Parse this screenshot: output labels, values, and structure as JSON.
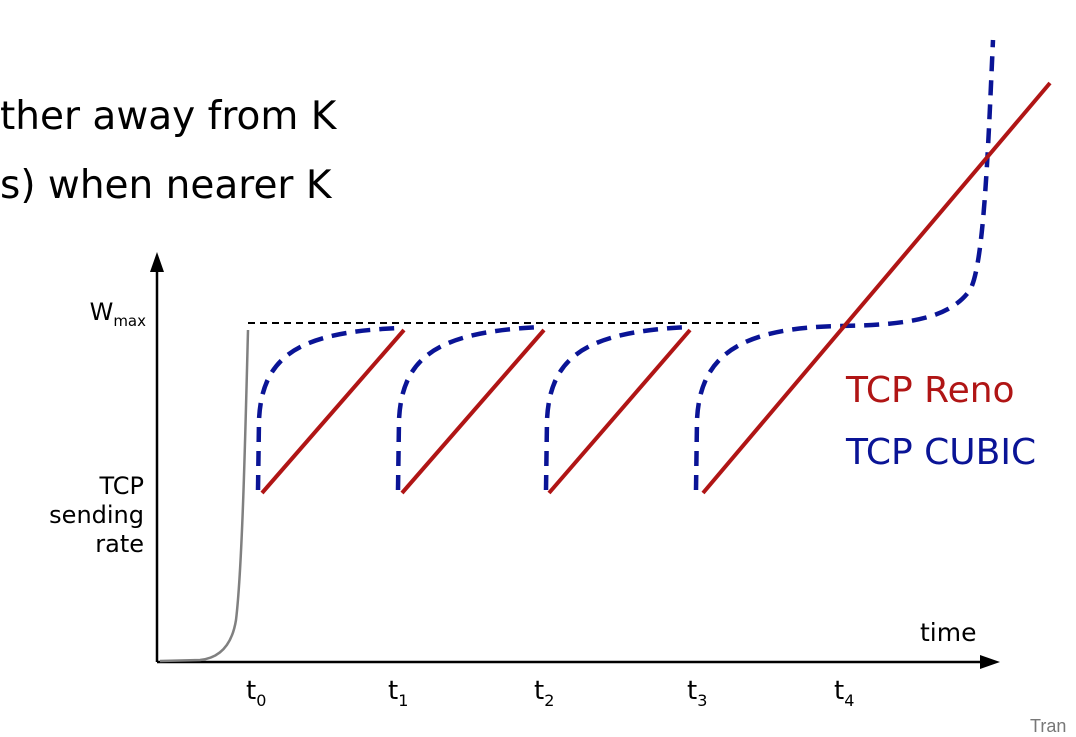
{
  "slide": {
    "bullets": [
      "ther away from K",
      "s) when nearer K"
    ],
    "footer": "Tran"
  },
  "diagram": {
    "y_axis_label_lines": [
      "TCP",
      "sending",
      "rate"
    ],
    "wmax_label": "W",
    "wmax_sub": "max",
    "x_axis_label": "time",
    "ticks": [
      {
        "base": "t",
        "sub": "0"
      },
      {
        "base": "t",
        "sub": "1"
      },
      {
        "base": "t",
        "sub": "2"
      },
      {
        "base": "t",
        "sub": "3"
      },
      {
        "base": "t",
        "sub": "4"
      }
    ],
    "legend": {
      "reno": {
        "label": "TCP Reno",
        "color": "#b01515"
      },
      "cubic": {
        "label": "TCP CUBIC",
        "color": "#0a1496"
      }
    },
    "colors": {
      "axis": "#000000",
      "slow_start": "#808080"
    }
  }
}
